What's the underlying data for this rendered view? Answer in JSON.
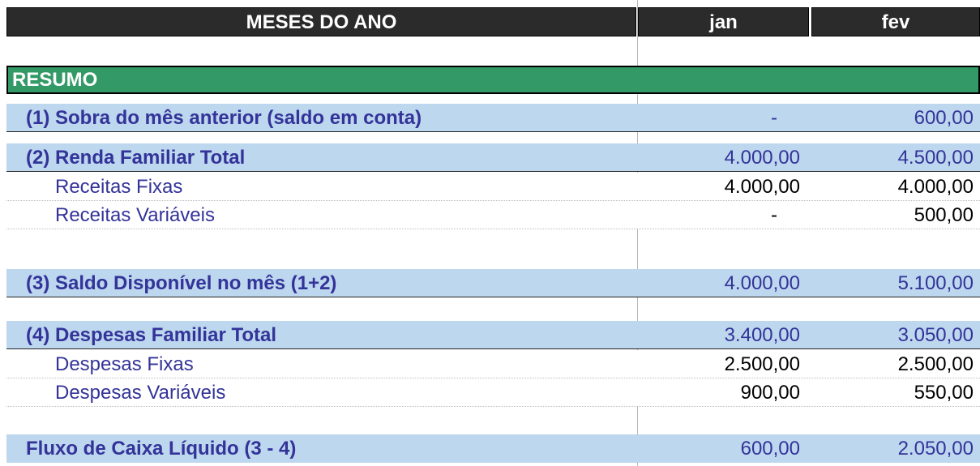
{
  "header": {
    "label": "MESES DO ANO",
    "months": [
      "jan",
      "fev"
    ]
  },
  "section": {
    "title": "RESUMO"
  },
  "rows": {
    "sobra": {
      "label": "(1) Sobra do mês anterior (saldo em conta)",
      "jan": "-",
      "fev": "600,00"
    },
    "renda": {
      "label": "(2) Renda Familiar Total",
      "jan": "4.000,00",
      "fev": "4.500,00"
    },
    "receitas_fixas": {
      "label": "Receitas Fixas",
      "jan": "4.000,00",
      "fev": "4.000,00"
    },
    "receitas_variaveis": {
      "label": "Receitas Variáveis",
      "jan": "-",
      "fev": "500,00"
    },
    "saldo": {
      "label": "(3) Saldo Disponível no mês (1+2)",
      "jan": "4.000,00",
      "fev": "5.100,00"
    },
    "despesas": {
      "label": "(4) Despesas Familiar Total",
      "jan": "3.400,00",
      "fev": "3.050,00"
    },
    "despesas_fixas": {
      "label": "Despesas Fixas",
      "jan": "2.500,00",
      "fev": "2.500,00"
    },
    "despesas_variaveis": {
      "label": "Despesas Variáveis",
      "jan": "900,00",
      "fev": "550,00"
    },
    "fluxo": {
      "label": "Fluxo de Caixa Líquido (3 - 4)",
      "jan": "600,00",
      "fev": "2.050,00"
    }
  },
  "colors": {
    "header_bg": "#2b2b2b",
    "section_bg": "#339966",
    "total_row_bg": "#bdd7ee",
    "label_text": "#333399"
  }
}
